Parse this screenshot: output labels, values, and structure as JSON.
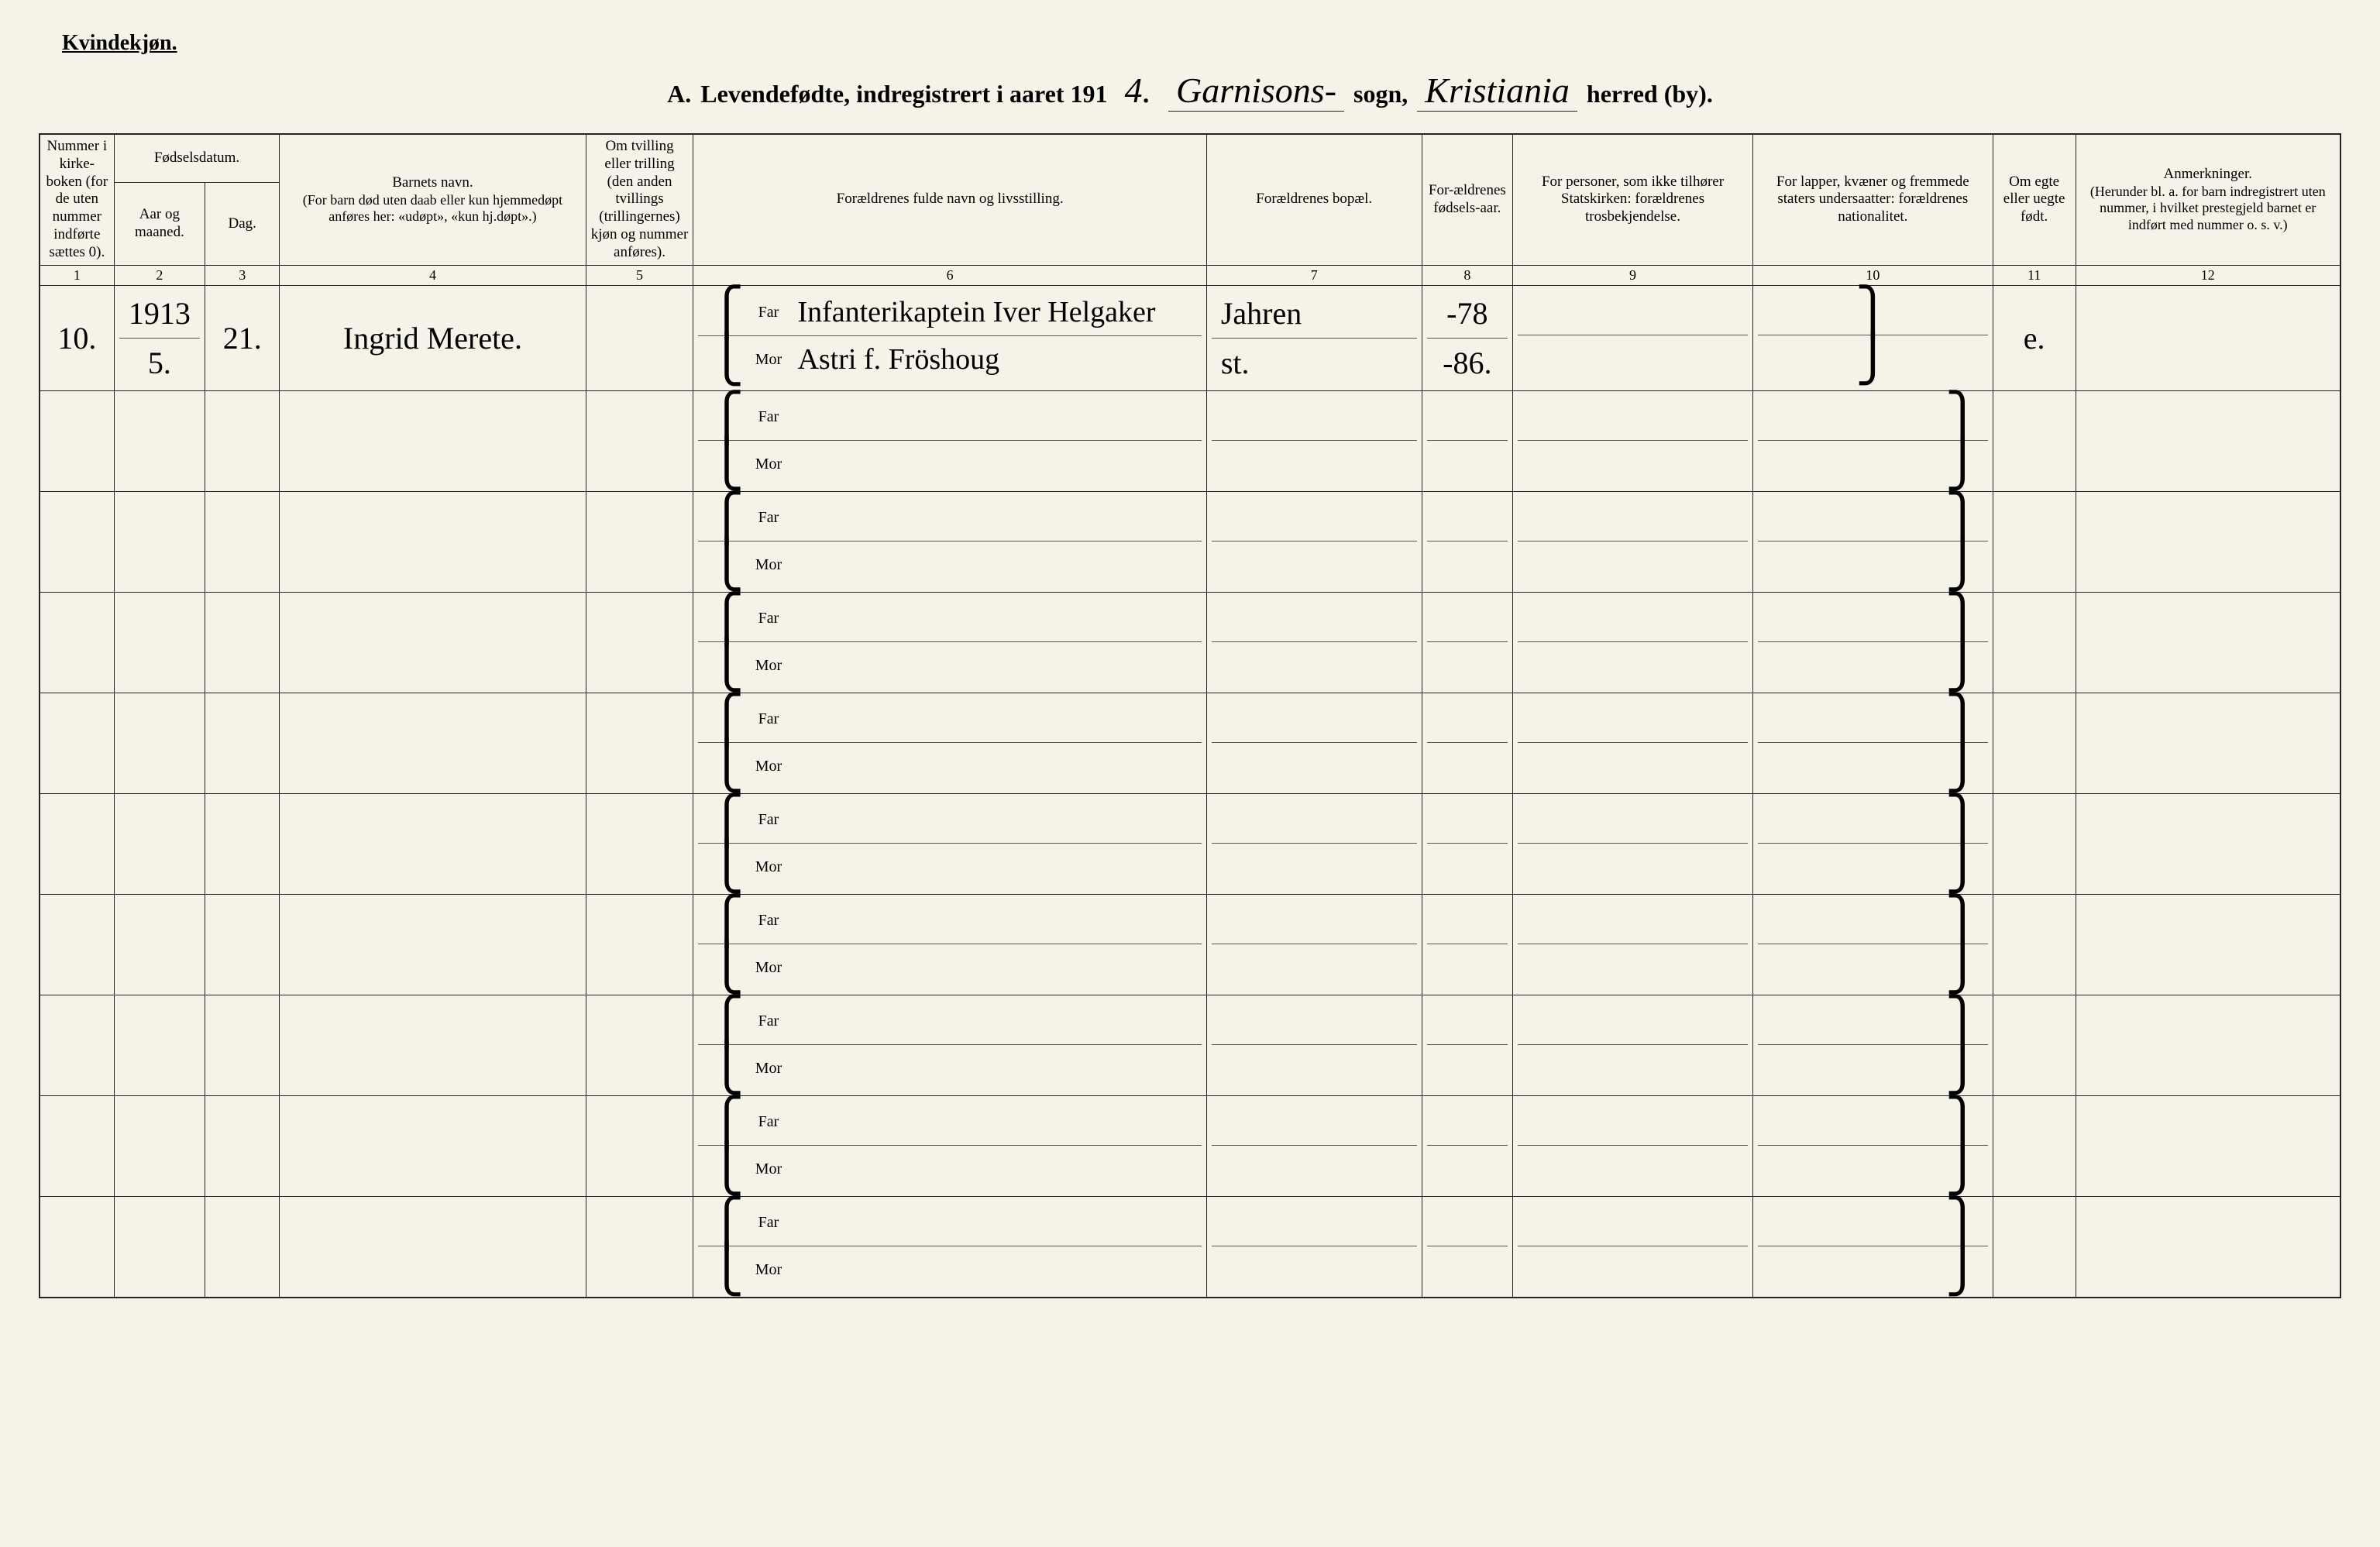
{
  "header": {
    "gender": "Kvindekjøn.",
    "section_letter": "A.",
    "title_prefix": "Levendefødte, indregistrert i aaret 191",
    "year_suffix": "4.",
    "parish_script": "Garnisons-",
    "label_sogn": "sogn,",
    "district_script": "Kristiania",
    "label_herred": "herred (by)."
  },
  "columns": {
    "c1": "Nummer i kirke-boken (for de uten nummer indførte sættes 0).",
    "c2_group": "Fødselsdatum.",
    "c2a": "Aar og maaned.",
    "c2b": "Dag.",
    "c4_title": "Barnets navn.",
    "c4_sub": "(For barn død uten daab eller kun hjemmedøpt anføres her: «udøpt», «kun hj.døpt».)",
    "c5": "Om tvilling eller trilling (den anden tvillings (trillingernes) kjøn og nummer anføres).",
    "c6": "Forældrenes fulde navn og livsstilling.",
    "c7": "Forældrenes bopæl.",
    "c8": "For-ældrenes fødsels-aar.",
    "c9": "For personer, som ikke tilhører Statskirken: forældrenes trosbekjendelse.",
    "c10": "For lapper, kvæner og fremmede staters undersaatter: forældrenes nationalitet.",
    "c11": "Om egte eller uegte født.",
    "c12_title": "Anmerkninger.",
    "c12_sub": "(Herunder bl. a. for barn indregistrert uten nummer, i hvilket prestegjeld barnet er indført med nummer o. s. v.)"
  },
  "col_numbers": [
    "1",
    "2",
    "3",
    "4",
    "5",
    "6",
    "7",
    "8",
    "9",
    "10",
    "11",
    "12"
  ],
  "labels": {
    "far": "Far",
    "mor": "Mor"
  },
  "entry": {
    "num": "10.",
    "year_month_top": "1913",
    "year_month_bottom": "5.",
    "day": "21.",
    "child_name": "Ingrid Merete.",
    "twin": "",
    "far_text": "Infanterikaptein Iver Helgaker",
    "mor_text": "Astri f. Fröshoug",
    "far_bopel": "Jahren",
    "mor_bopel": "st.",
    "far_year": "-78",
    "mor_year": "-86.",
    "far_rel": "",
    "mor_rel": "",
    "far_nat": "",
    "mor_nat": "",
    "egte": "e.",
    "anm": ""
  },
  "style": {
    "background": "#f5f3e8",
    "border": "#222222",
    "text": "#1a1a1a",
    "script_font": "Brush Script MT",
    "body_font": "Times New Roman",
    "title_fontsize": 32,
    "header_fontsize": 19,
    "script_fontsize": 40
  },
  "blank_rows": 9
}
